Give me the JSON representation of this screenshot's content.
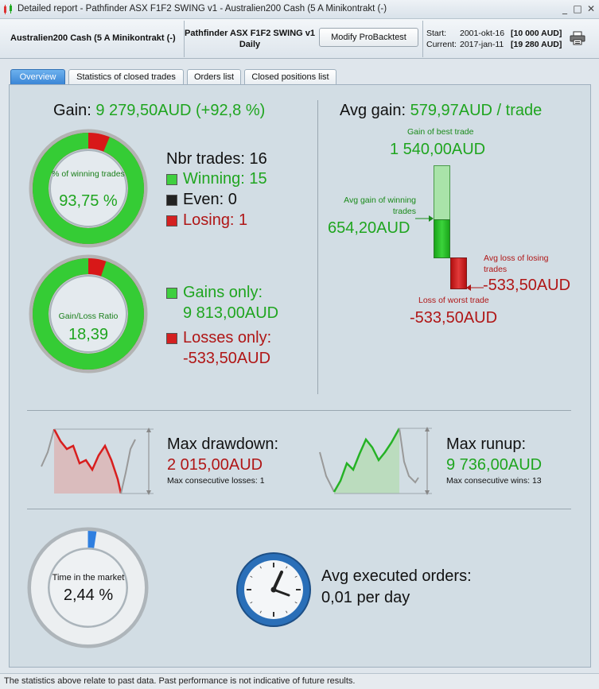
{
  "window": {
    "title": "Detailed report - Pathfinder ASX F1F2 SWING v1 - Australien200 Cash (5 A Minikontrakt (-)",
    "minimize": "_",
    "maximize": "□",
    "close": "✕",
    "icon": "candlestick-chart-icon"
  },
  "header": {
    "instrument": "Australien200 Cash (5 A Minikontrakt (-)",
    "system_name": "Pathfinder ASX F1F2 SWING v1",
    "timeframe": "Daily",
    "modify_button": "Modify ProBacktest",
    "start_label": "Start:",
    "start_date": "2001-okt-16",
    "start_capital": "[10 000 AUD]",
    "current_label": "Current:",
    "current_date": "2017-jan-11",
    "current_capital": "[19 280 AUD]",
    "print_icon": "printer-icon"
  },
  "tabs": [
    {
      "label": "Overview",
      "active": true
    },
    {
      "label": "Statistics of closed trades",
      "active": false
    },
    {
      "label": "Orders list",
      "active": false
    },
    {
      "label": "Closed positions list",
      "active": false
    }
  ],
  "gain": {
    "label": "Gain:",
    "value": "9 279,50AUD (+92,8 %)"
  },
  "winning_ring": {
    "caption": "% of winning trades",
    "value": "93,75 %",
    "fraction_green": 0.9375
  },
  "trades": {
    "nbr_label": "Nbr trades: 16",
    "winning_label": "Winning: 15",
    "even_label": "Even: 0",
    "losing_label": "Losing: 1"
  },
  "ratio_ring": {
    "caption": "Gain/Loss Ratio",
    "value": "18,39",
    "fraction_green": 0.948
  },
  "gains_losses": {
    "gains_label": "Gains only:",
    "gains_value": "9 813,00AUD",
    "losses_label": "Losses only:",
    "losses_value": "-533,50AUD"
  },
  "avg_gain": {
    "label": "Avg gain:",
    "value": "579,97AUD / trade",
    "best_trade_label": "Gain of best trade",
    "best_trade_value": "1 540,00AUD",
    "avg_winning_label_1": "Avg gain of winning",
    "avg_winning_label_2": "trades",
    "avg_winning_value": "654,20AUD",
    "avg_losing_label_1": "Avg loss of losing",
    "avg_losing_label_2": "trades",
    "avg_losing_value": "-533,50AUD",
    "worst_trade_label": "Loss of worst trade",
    "worst_trade_value": "-533,50AUD"
  },
  "drawdown": {
    "label": "Max drawdown:",
    "value": "2 015,00AUD",
    "sub": "Max consecutive losses: 1"
  },
  "runup": {
    "label": "Max runup:",
    "value": "9 736,00AUD",
    "sub": "Max consecutive wins: 13"
  },
  "market": {
    "caption": "Time in the market",
    "value": "2,44 %",
    "fraction": 0.0244
  },
  "orders": {
    "label": "Avg executed orders:",
    "value": "0,01 per day",
    "icon": "clock-icon"
  },
  "footer": "The statistics above relate to past data. Past performance is not indicative of future results.",
  "colors": {
    "green": "#1fa51f",
    "red": "#b01616",
    "tab_active": "#3a86d6"
  }
}
